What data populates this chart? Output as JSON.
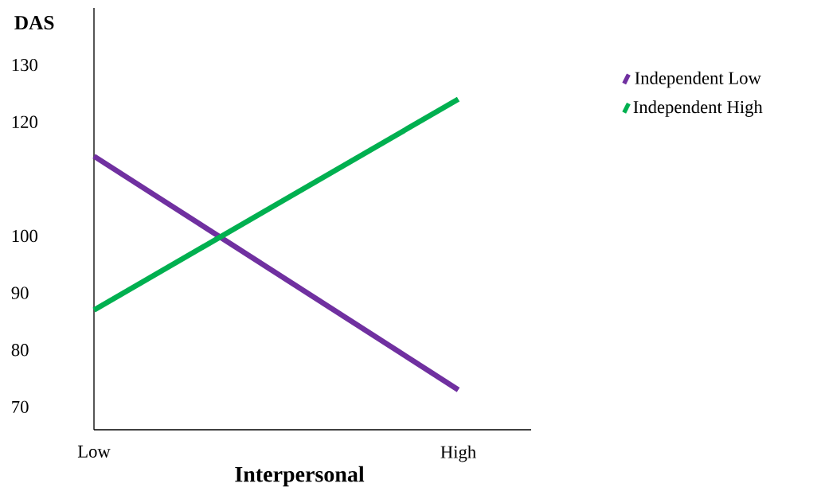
{
  "chart_data": {
    "type": "line",
    "xlabel": "Interpersonal",
    "ylabel": "DAS",
    "categories": [
      "Low",
      "High"
    ],
    "series": [
      {
        "name": "Independent Low",
        "color": "#7030a0",
        "values": [
          114,
          73
        ]
      },
      {
        "name": "Independent High",
        "color": "#00b050",
        "values": [
          87,
          124
        ]
      }
    ],
    "ylim": [
      66,
      140
    ],
    "yticks": [
      70,
      80,
      90,
      100,
      120,
      130
    ],
    "legend": "right",
    "marker": "none",
    "line_style": "solid",
    "grid": false
  }
}
